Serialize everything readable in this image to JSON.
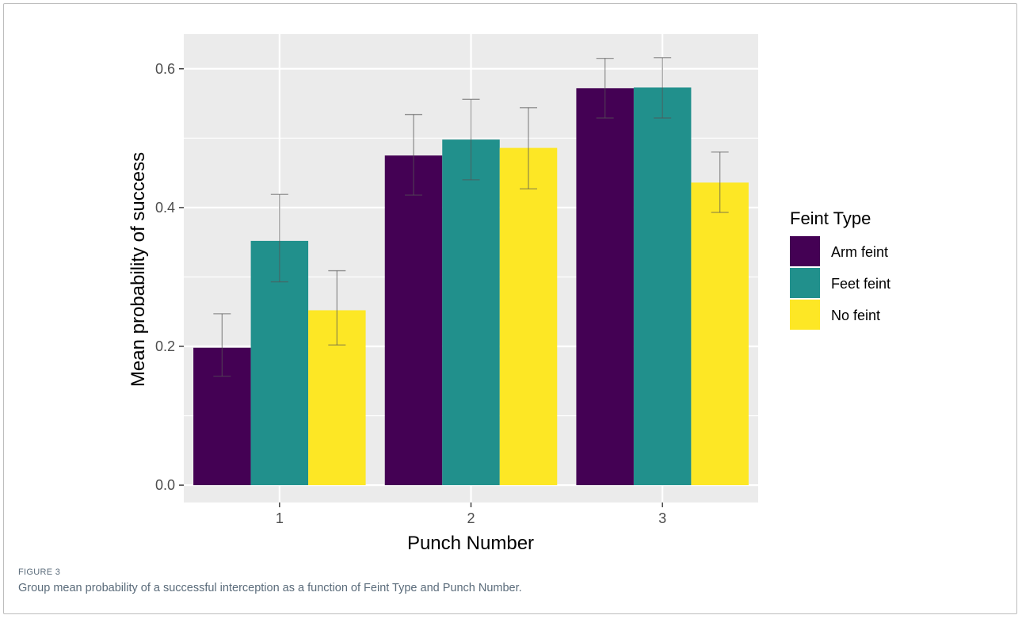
{
  "figure": {
    "label": "FIGURE 3",
    "caption": "Group mean probability of a successful interception as a function of Feint Type and Punch Number."
  },
  "chart_data": {
    "type": "bar",
    "title": "",
    "xlabel": "Punch Number",
    "ylabel": "Mean probability of success",
    "categories": [
      "1",
      "2",
      "3"
    ],
    "ylim": [
      -0.025,
      0.65
    ],
    "yticks": [
      "0.0",
      "0.2",
      "0.4",
      "0.6"
    ],
    "grid": true,
    "legend": {
      "title": "Feint Type",
      "position": "right"
    },
    "series": [
      {
        "name": "Arm feint",
        "color": "#440154",
        "values": [
          0.198,
          0.475,
          0.572
        ],
        "err_low": [
          0.157,
          0.418,
          0.529
        ],
        "err_high": [
          0.247,
          0.534,
          0.615
        ]
      },
      {
        "name": "Feet feint",
        "color": "#21908C",
        "values": [
          0.352,
          0.498,
          0.573
        ],
        "err_low": [
          0.293,
          0.44,
          0.529
        ],
        "err_high": [
          0.419,
          0.556,
          0.616
        ]
      },
      {
        "name": "No feint",
        "color": "#FDE725",
        "values": [
          0.252,
          0.486,
          0.436
        ],
        "err_low": [
          0.202,
          0.427,
          0.393
        ],
        "err_high": [
          0.309,
          0.544,
          0.48
        ]
      }
    ]
  }
}
